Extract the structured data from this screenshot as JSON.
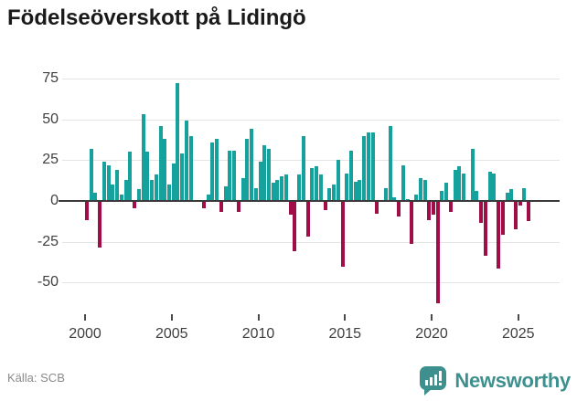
{
  "title": "Födelseöverskott på Lidingö",
  "source": "Källa: SCB",
  "logo": {
    "text": "Newsworthy",
    "color": "#3e908e"
  },
  "colors": {
    "positive": "#16a29c",
    "negative": "#a00d47",
    "zero_line": "#3a3a3a",
    "gridline": "#e4e4e4",
    "axis_text": "#3f3f3f",
    "title_text": "#1a1a1a",
    "source_text": "#8a8a8a"
  },
  "chart_data": {
    "type": "bar",
    "title": "Födelseöverskott på Lidingö",
    "xlabel": "",
    "ylabel": "",
    "freq": "quarterly",
    "start_year": 2000,
    "start_quarter": 1,
    "x_ticks": [
      "2000",
      "2005",
      "2010",
      "2015",
      "2020",
      "2025"
    ],
    "y_ticks": [
      75,
      50,
      25,
      0,
      -25,
      -50
    ],
    "ylim": [
      -66,
      78
    ],
    "grid": true,
    "legend": "none",
    "values": [
      -11,
      32,
      5,
      -28,
      24,
      22,
      10,
      19,
      4,
      13,
      30,
      -4,
      7,
      53,
      30,
      13,
      16,
      46,
      38,
      10,
      23,
      72,
      29,
      49,
      40,
      0,
      0,
      -4,
      4,
      36,
      38,
      -6,
      9,
      31,
      31,
      -6,
      14,
      38,
      44,
      8,
      24,
      34,
      32,
      11,
      13,
      15,
      16,
      -8,
      -30,
      16,
      40,
      -21,
      20,
      21,
      16,
      -5,
      8,
      10,
      25,
      -40,
      17,
      31,
      12,
      13,
      40,
      42,
      42,
      -7,
      0,
      8,
      46,
      2,
      -9,
      22,
      1,
      -26,
      4,
      14,
      13,
      -11,
      -8,
      -62,
      6,
      11,
      -6,
      19,
      21,
      17,
      0,
      32,
      6,
      -13,
      -33,
      18,
      17,
      -41,
      -20,
      5,
      7,
      -17,
      -2,
      8,
      -12
    ]
  }
}
